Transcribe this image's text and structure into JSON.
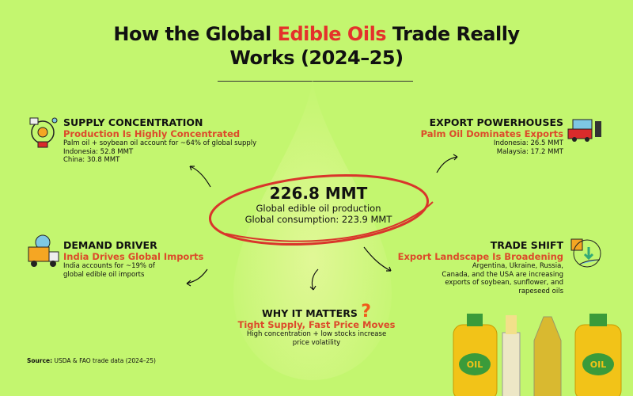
{
  "title": {
    "part1": "How the Global ",
    "accent": "Edible Oils",
    "part2": " Trade Really",
    "line2": "Works (2024–25)"
  },
  "center": {
    "value": "226.8 MMT",
    "line1": "Global edible oil production",
    "line2": "Global consumption: 223.9 MMT"
  },
  "supply": {
    "heading": "SUPPLY CONCENTRATION",
    "sub": "Production Is Highly Concentrated",
    "lines": [
      "Palm oil + soybean oil account for ~64% of global supply",
      "Indonesia: 52.8 MMT",
      "China: 30.8 MMT"
    ]
  },
  "export": {
    "heading": "EXPORT POWERHOUSES",
    "sub": "Palm Oil Dominates Exports",
    "lines": [
      "Indonesia: 26.5 MMT",
      "Malaysia: 17.2 MMT"
    ]
  },
  "demand": {
    "heading": "DEMAND DRIVER",
    "sub": "India Drives Global Imports",
    "lines": [
      "India accounts for ~19% of",
      "global edible oil imports"
    ]
  },
  "trade": {
    "heading": "TRADE SHIFT",
    "sub": "Export Landscape Is Broadening",
    "lines": [
      "Argentina, Ukraine, Russia,",
      "Canada, and the USA are increasing",
      "exports of soybean, sunflower, and",
      "rapeseed oils"
    ]
  },
  "why": {
    "heading": "WHY IT MATTERS",
    "sub": "Tight Supply, Fast Price Moves",
    "lines": [
      "High concentration + low stocks increase",
      "price volatility"
    ]
  },
  "source": {
    "label": "Source:",
    "text": " USDA & FAO trade data (2024–25)"
  },
  "bottles": {
    "label": "OIL"
  },
  "colors": {
    "background": "#c3f66f",
    "accent": "#e4322b",
    "subheading": "#dc4a2a"
  }
}
